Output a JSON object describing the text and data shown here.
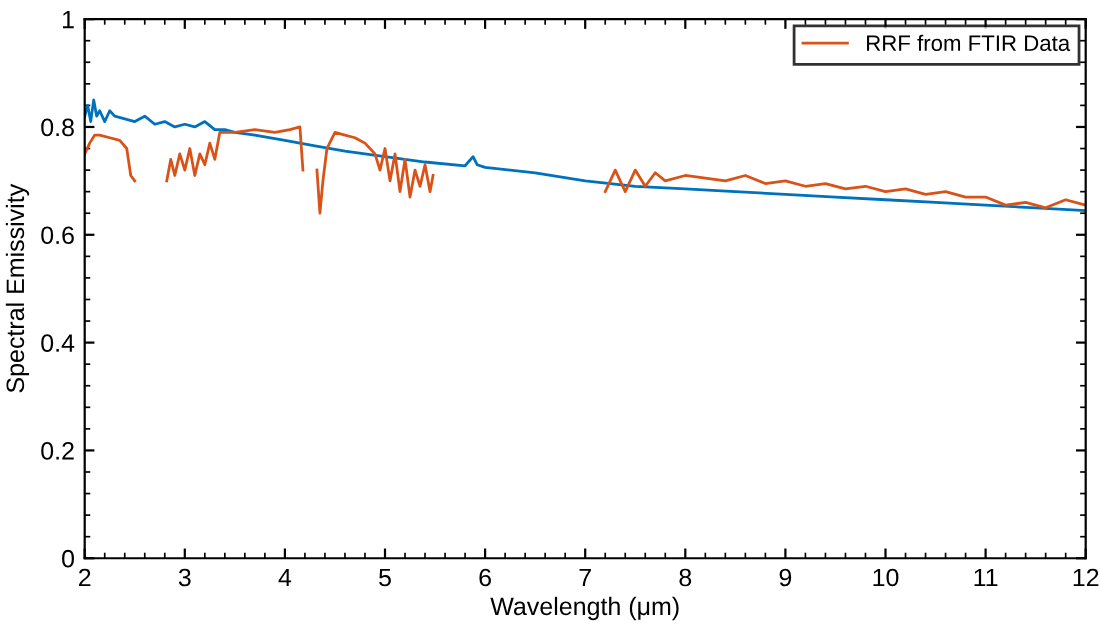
{
  "chart_data": {
    "type": "line",
    "xlabel": "Wavelength (μm)",
    "ylabel": "Spectral Emissivity",
    "xlim": [
      2,
      12
    ],
    "ylim": [
      0,
      1
    ],
    "xticks": [
      2,
      3,
      4,
      5,
      6,
      7,
      8,
      9,
      10,
      11,
      12
    ],
    "yticks": [
      0,
      0.2,
      0.4,
      0.6,
      0.8,
      1
    ],
    "grid": false,
    "legend": "top right",
    "marker": "none",
    "line_style": "solid",
    "series": [
      {
        "color": "#0072bd",
        "x": [
          2.0,
          2.03,
          2.06,
          2.09,
          2.12,
          2.15,
          2.2,
          2.25,
          2.3,
          2.4,
          2.5,
          2.6,
          2.7,
          2.8,
          2.9,
          3.0,
          3.1,
          3.2,
          3.3,
          3.4,
          3.5,
          3.7,
          4.0,
          4.3,
          4.6,
          5.0,
          5.4,
          5.8,
          5.88,
          5.92,
          6.0,
          6.5,
          7.0,
          7.5,
          8.0,
          8.5,
          9.0,
          9.5,
          10.0,
          10.5,
          11.0,
          11.5,
          12.0
        ],
        "values": [
          0.82,
          0.84,
          0.81,
          0.85,
          0.82,
          0.83,
          0.81,
          0.83,
          0.82,
          0.815,
          0.81,
          0.82,
          0.805,
          0.81,
          0.8,
          0.805,
          0.8,
          0.81,
          0.795,
          0.795,
          0.79,
          0.785,
          0.775,
          0.765,
          0.755,
          0.745,
          0.735,
          0.728,
          0.745,
          0.73,
          0.725,
          0.715,
          0.7,
          0.69,
          0.685,
          0.68,
          0.675,
          0.67,
          0.665,
          0.66,
          0.655,
          0.65,
          0.645
        ]
      },
      {
        "name": "RRF from FTIR Data",
        "color": "#d95319",
        "x": [
          2.0,
          2.05,
          2.1,
          2.15,
          2.25,
          2.35,
          2.42,
          2.46,
          2.5,
          2.6,
          2.82,
          2.86,
          2.9,
          2.95,
          3.0,
          3.05,
          3.1,
          3.15,
          3.2,
          3.25,
          3.3,
          3.35,
          3.5,
          3.7,
          3.9,
          4.05,
          4.15,
          4.18,
          4.25,
          4.32,
          4.35,
          4.38,
          4.42,
          4.5,
          4.6,
          4.7,
          4.8,
          4.9,
          4.95,
          5.0,
          5.05,
          5.1,
          5.15,
          5.2,
          5.25,
          5.3,
          5.35,
          5.4,
          5.45,
          5.48,
          6.5,
          7.2,
          7.3,
          7.4,
          7.5,
          7.6,
          7.7,
          7.8,
          8.0,
          8.2,
          8.4,
          8.6,
          8.8,
          9.0,
          9.2,
          9.4,
          9.6,
          9.8,
          10.0,
          10.2,
          10.4,
          10.6,
          10.8,
          11.0,
          11.2,
          11.4,
          11.6,
          11.8,
          12.0
        ],
        "values": [
          0.75,
          0.77,
          0.785,
          0.785,
          0.78,
          0.775,
          0.76,
          0.71,
          0.7,
          null,
          0.7,
          0.74,
          0.71,
          0.75,
          0.72,
          0.76,
          0.71,
          0.75,
          0.73,
          0.77,
          0.74,
          0.79,
          0.79,
          0.795,
          0.79,
          0.795,
          0.8,
          0.72,
          null,
          0.72,
          0.64,
          0.7,
          0.76,
          0.79,
          0.785,
          0.78,
          0.77,
          0.75,
          0.72,
          0.76,
          0.7,
          0.75,
          0.68,
          0.74,
          0.67,
          0.72,
          0.69,
          0.73,
          0.68,
          0.71,
          null,
          0.68,
          0.72,
          0.68,
          0.72,
          0.69,
          0.715,
          0.7,
          0.71,
          0.705,
          0.7,
          0.71,
          0.695,
          0.7,
          0.69,
          0.695,
          0.685,
          0.69,
          0.68,
          0.685,
          0.675,
          0.68,
          0.67,
          0.67,
          0.655,
          0.66,
          0.65,
          0.665,
          0.655
        ]
      }
    ]
  }
}
